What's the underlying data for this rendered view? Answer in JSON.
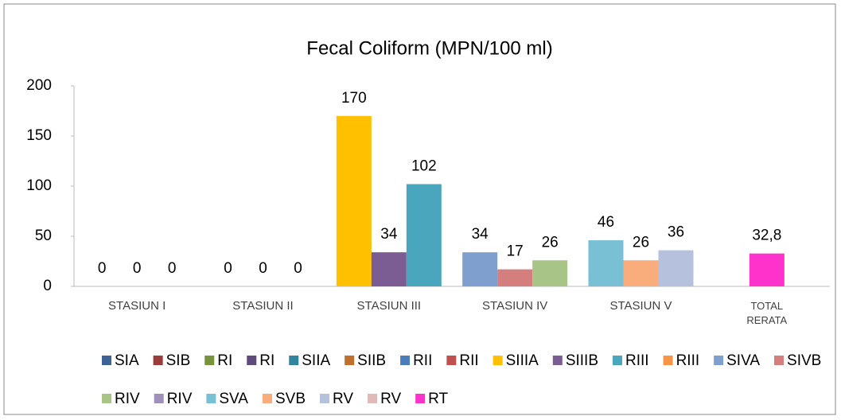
{
  "chart_data": {
    "type": "bar",
    "title": "Fecal Coliform  (MPN/100 ml)",
    "categories": [
      "STASIUN I",
      "STASIUN II",
      "STASIUN III",
      "STASIUN IV",
      "STASIUN V",
      "TOTAL\nRERATA"
    ],
    "ylim": [
      0,
      200
    ],
    "yticks": [
      0,
      50,
      100,
      150,
      200
    ],
    "grid": false,
    "legend": "bottom",
    "series": [
      {
        "name": "SIA",
        "color": "#3e6495",
        "values": [
          0,
          null,
          null,
          null,
          null,
          null
        ]
      },
      {
        "name": "SIB",
        "color": "#9c3b3a",
        "values": [
          0,
          null,
          null,
          null,
          null,
          null
        ]
      },
      {
        "name": "RI",
        "color": "#77933c",
        "values": [
          0,
          null,
          null,
          null,
          null,
          null
        ]
      },
      {
        "name": "RI",
        "color": "#604a7b",
        "values": [
          null,
          null,
          null,
          null,
          null,
          null
        ]
      },
      {
        "name": "SIIA",
        "color": "#31859c",
        "values": [
          null,
          0,
          null,
          null,
          null,
          null
        ]
      },
      {
        "name": "SIIB",
        "color": "#c0702c",
        "values": [
          null,
          0,
          null,
          null,
          null,
          null
        ]
      },
      {
        "name": "RII",
        "color": "#4a7ebb",
        "values": [
          null,
          0,
          null,
          null,
          null,
          null
        ]
      },
      {
        "name": "RII",
        "color": "#c0504d",
        "values": [
          null,
          null,
          null,
          null,
          null,
          null
        ]
      },
      {
        "name": "SIIIA",
        "color": "#ffc000",
        "values": [
          null,
          null,
          170,
          null,
          null,
          null
        ]
      },
      {
        "name": "SIIIB",
        "color": "#7b5c93",
        "values": [
          null,
          null,
          34,
          null,
          null,
          null
        ]
      },
      {
        "name": "RIII",
        "color": "#4aa6bd",
        "values": [
          null,
          null,
          102,
          null,
          null,
          null
        ]
      },
      {
        "name": "RIII",
        "color": "#f79646",
        "values": [
          null,
          null,
          null,
          null,
          null,
          null
        ]
      },
      {
        "name": "SIVA",
        "color": "#7f9fcf",
        "values": [
          null,
          null,
          null,
          34,
          null,
          null
        ]
      },
      {
        "name": "SIVB",
        "color": "#d47f7e",
        "values": [
          null,
          null,
          null,
          17,
          null,
          null
        ]
      },
      {
        "name": "RIV",
        "color": "#a8c486",
        "values": [
          null,
          null,
          null,
          26,
          null,
          null
        ]
      },
      {
        "name": "RIV",
        "color": "#9f8fbb",
        "values": [
          null,
          null,
          null,
          null,
          null,
          null
        ]
      },
      {
        "name": "SVA",
        "color": "#7ac0d4",
        "values": [
          null,
          null,
          null,
          null,
          46,
          null
        ]
      },
      {
        "name": "SVB",
        "color": "#f9ad7c",
        "values": [
          null,
          null,
          null,
          null,
          26,
          null
        ]
      },
      {
        "name": "RV",
        "color": "#b6c1de",
        "values": [
          null,
          null,
          null,
          null,
          36,
          null
        ]
      },
      {
        "name": "RV",
        "color": "#e0b9b8",
        "values": [
          null,
          null,
          null,
          null,
          null,
          null
        ]
      },
      {
        "name": "RT",
        "color": "#ff33cc",
        "values": [
          null,
          null,
          null,
          null,
          null,
          32.8
        ],
        "value_labels": [
          null,
          null,
          null,
          null,
          null,
          "32,8"
        ]
      }
    ]
  }
}
